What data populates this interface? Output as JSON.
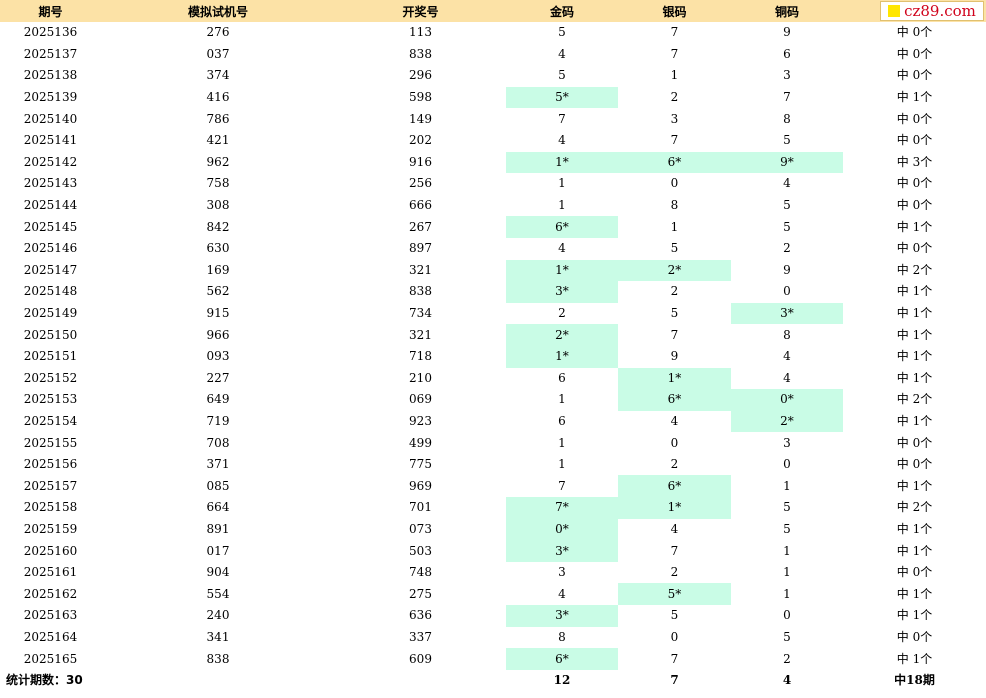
{
  "headers": [
    "期号",
    "模拟试机号",
    "开奖号",
    "金码",
    "银码",
    "铜码",
    ""
  ],
  "logo_text": "cz89.com",
  "rows": [
    {
      "issue": "2025136",
      "sim": "276",
      "draw": "113",
      "gold": "5",
      "silver": "7",
      "bronze": "9",
      "hits": "中 0个",
      "gh": false,
      "sh": false,
      "bh": false
    },
    {
      "issue": "2025137",
      "sim": "037",
      "draw": "838",
      "gold": "4",
      "silver": "7",
      "bronze": "6",
      "hits": "中 0个",
      "gh": false,
      "sh": false,
      "bh": false
    },
    {
      "issue": "2025138",
      "sim": "374",
      "draw": "296",
      "gold": "5",
      "silver": "1",
      "bronze": "3",
      "hits": "中 0个",
      "gh": false,
      "sh": false,
      "bh": false
    },
    {
      "issue": "2025139",
      "sim": "416",
      "draw": "598",
      "gold": "5*",
      "silver": "2",
      "bronze": "7",
      "hits": "中 1个",
      "gh": true,
      "sh": false,
      "bh": false
    },
    {
      "issue": "2025140",
      "sim": "786",
      "draw": "149",
      "gold": "7",
      "silver": "3",
      "bronze": "8",
      "hits": "中 0个",
      "gh": false,
      "sh": false,
      "bh": false
    },
    {
      "issue": "2025141",
      "sim": "421",
      "draw": "202",
      "gold": "4",
      "silver": "7",
      "bronze": "5",
      "hits": "中 0个",
      "gh": false,
      "sh": false,
      "bh": false
    },
    {
      "issue": "2025142",
      "sim": "962",
      "draw": "916",
      "gold": "1*",
      "silver": "6*",
      "bronze": "9*",
      "hits": "中 3个",
      "gh": true,
      "sh": true,
      "bh": true
    },
    {
      "issue": "2025143",
      "sim": "758",
      "draw": "256",
      "gold": "1",
      "silver": "0",
      "bronze": "4",
      "hits": "中 0个",
      "gh": false,
      "sh": false,
      "bh": false
    },
    {
      "issue": "2025144",
      "sim": "308",
      "draw": "666",
      "gold": "1",
      "silver": "8",
      "bronze": "5",
      "hits": "中 0个",
      "gh": false,
      "sh": false,
      "bh": false
    },
    {
      "issue": "2025145",
      "sim": "842",
      "draw": "267",
      "gold": "6*",
      "silver": "1",
      "bronze": "5",
      "hits": "中 1个",
      "gh": true,
      "sh": false,
      "bh": false
    },
    {
      "issue": "2025146",
      "sim": "630",
      "draw": "897",
      "gold": "4",
      "silver": "5",
      "bronze": "2",
      "hits": "中 0个",
      "gh": false,
      "sh": false,
      "bh": false
    },
    {
      "issue": "2025147",
      "sim": "169",
      "draw": "321",
      "gold": "1*",
      "silver": "2*",
      "bronze": "9",
      "hits": "中 2个",
      "gh": true,
      "sh": true,
      "bh": false
    },
    {
      "issue": "2025148",
      "sim": "562",
      "draw": "838",
      "gold": "3*",
      "silver": "2",
      "bronze": "0",
      "hits": "中 1个",
      "gh": true,
      "sh": false,
      "bh": false
    },
    {
      "issue": "2025149",
      "sim": "915",
      "draw": "734",
      "gold": "2",
      "silver": "5",
      "bronze": "3*",
      "hits": "中 1个",
      "gh": false,
      "sh": false,
      "bh": true
    },
    {
      "issue": "2025150",
      "sim": "966",
      "draw": "321",
      "gold": "2*",
      "silver": "7",
      "bronze": "8",
      "hits": "中 1个",
      "gh": true,
      "sh": false,
      "bh": false
    },
    {
      "issue": "2025151",
      "sim": "093",
      "draw": "718",
      "gold": "1*",
      "silver": "9",
      "bronze": "4",
      "hits": "中 1个",
      "gh": true,
      "sh": false,
      "bh": false
    },
    {
      "issue": "2025152",
      "sim": "227",
      "draw": "210",
      "gold": "6",
      "silver": "1*",
      "bronze": "4",
      "hits": "中 1个",
      "gh": false,
      "sh": true,
      "bh": false
    },
    {
      "issue": "2025153",
      "sim": "649",
      "draw": "069",
      "gold": "1",
      "silver": "6*",
      "bronze": "0*",
      "hits": "中 2个",
      "gh": false,
      "sh": true,
      "bh": true
    },
    {
      "issue": "2025154",
      "sim": "719",
      "draw": "923",
      "gold": "6",
      "silver": "4",
      "bronze": "2*",
      "hits": "中 1个",
      "gh": false,
      "sh": false,
      "bh": true
    },
    {
      "issue": "2025155",
      "sim": "708",
      "draw": "499",
      "gold": "1",
      "silver": "0",
      "bronze": "3",
      "hits": "中 0个",
      "gh": false,
      "sh": false,
      "bh": false
    },
    {
      "issue": "2025156",
      "sim": "371",
      "draw": "775",
      "gold": "1",
      "silver": "2",
      "bronze": "0",
      "hits": "中 0个",
      "gh": false,
      "sh": false,
      "bh": false
    },
    {
      "issue": "2025157",
      "sim": "085",
      "draw": "969",
      "gold": "7",
      "silver": "6*",
      "bronze": "1",
      "hits": "中 1个",
      "gh": false,
      "sh": true,
      "bh": false
    },
    {
      "issue": "2025158",
      "sim": "664",
      "draw": "701",
      "gold": "7*",
      "silver": "1*",
      "bronze": "5",
      "hits": "中 2个",
      "gh": true,
      "sh": true,
      "bh": false
    },
    {
      "issue": "2025159",
      "sim": "891",
      "draw": "073",
      "gold": "0*",
      "silver": "4",
      "bronze": "5",
      "hits": "中 1个",
      "gh": true,
      "sh": false,
      "bh": false
    },
    {
      "issue": "2025160",
      "sim": "017",
      "draw": "503",
      "gold": "3*",
      "silver": "7",
      "bronze": "1",
      "hits": "中 1个",
      "gh": true,
      "sh": false,
      "bh": false
    },
    {
      "issue": "2025161",
      "sim": "904",
      "draw": "748",
      "gold": "3",
      "silver": "2",
      "bronze": "1",
      "hits": "中 0个",
      "gh": false,
      "sh": false,
      "bh": false
    },
    {
      "issue": "2025162",
      "sim": "554",
      "draw": "275",
      "gold": "4",
      "silver": "5*",
      "bronze": "1",
      "hits": "中 1个",
      "gh": false,
      "sh": true,
      "bh": false
    },
    {
      "issue": "2025163",
      "sim": "240",
      "draw": "636",
      "gold": "3*",
      "silver": "5",
      "bronze": "0",
      "hits": "中 1个",
      "gh": true,
      "sh": false,
      "bh": false
    },
    {
      "issue": "2025164",
      "sim": "341",
      "draw": "337",
      "gold": "8",
      "silver": "0",
      "bronze": "5",
      "hits": "中 0个",
      "gh": false,
      "sh": false,
      "bh": false
    },
    {
      "issue": "2025165",
      "sim": "838",
      "draw": "609",
      "gold": "6*",
      "silver": "7",
      "bronze": "2",
      "hits": "中 1个",
      "gh": true,
      "sh": false,
      "bh": false
    }
  ],
  "footer": {
    "label": "统计期数：30",
    "gold_total": "12",
    "silver_total": "7",
    "bronze_total": "4",
    "hit_total": "中18期"
  }
}
